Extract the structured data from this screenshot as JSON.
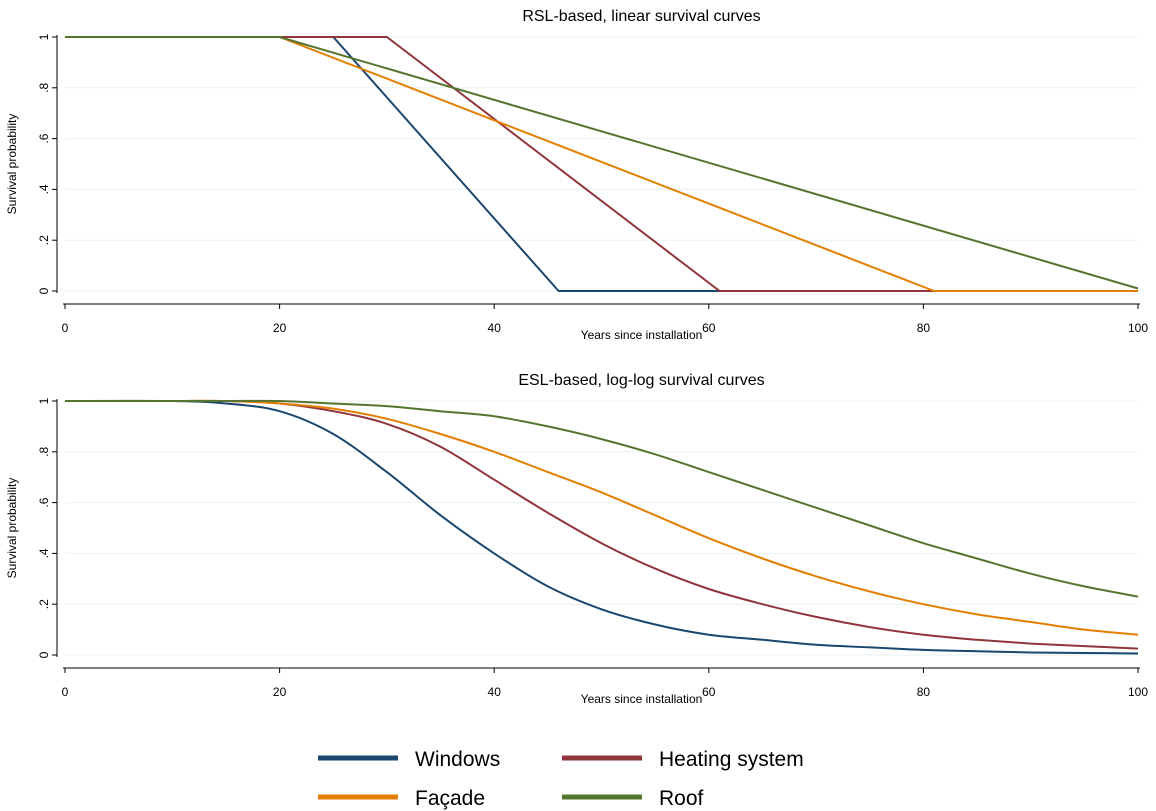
{
  "legend": {
    "items": [
      {
        "name": "Windows",
        "color": "#1a476f"
      },
      {
        "name": "Heating system",
        "color": "#90353b"
      },
      {
        "name": "Façade",
        "color": "#e37e00"
      },
      {
        "name": "Roof",
        "color": "#55752f"
      }
    ]
  },
  "chart_data": [
    {
      "type": "line",
      "title": "RSL-based, linear survival curves",
      "xlabel": "Years since installation",
      "ylabel": "Survival probability",
      "xlim": [
        0,
        100
      ],
      "ylim": [
        0,
        1
      ],
      "xticks": [
        0,
        20,
        40,
        60,
        80,
        100
      ],
      "xtick_labels": [
        "0",
        "20",
        "40",
        "60",
        "80",
        "100"
      ],
      "yticks": [
        0,
        0.2,
        0.4,
        0.6,
        0.8,
        1
      ],
      "ytick_labels": [
        "0",
        ".2",
        ".4",
        ".6",
        ".8",
        "1"
      ],
      "grid": true,
      "series": [
        {
          "name": "Windows",
          "color": "#1a476f",
          "x": [
            0,
            25,
            46,
            100
          ],
          "y": [
            1,
            1,
            0,
            0
          ]
        },
        {
          "name": "Heating system",
          "color": "#90353b",
          "x": [
            0,
            30,
            61,
            100
          ],
          "y": [
            1,
            1,
            0,
            0
          ]
        },
        {
          "name": "Façade",
          "color": "#e37e00",
          "x": [
            0,
            20,
            81,
            100
          ],
          "y": [
            1,
            1,
            0,
            0
          ]
        },
        {
          "name": "Roof",
          "color": "#55752f",
          "x": [
            0,
            20,
            100
          ],
          "y": [
            1,
            1,
            0.01
          ]
        }
      ]
    },
    {
      "type": "line",
      "title": "ESL-based, log-log survival curves",
      "xlabel": "Years since installation",
      "ylabel": "Survival probability",
      "xlim": [
        0,
        100
      ],
      "ylim": [
        0,
        1
      ],
      "xticks": [
        0,
        20,
        40,
        60,
        80,
        100
      ],
      "xtick_labels": [
        "0",
        "20",
        "40",
        "60",
        "80",
        "100"
      ],
      "yticks": [
        0,
        0.2,
        0.4,
        0.6,
        0.8,
        1
      ],
      "ytick_labels": [
        "0",
        ".2",
        ".4",
        ".6",
        ".8",
        "1"
      ],
      "grid": true,
      "series": [
        {
          "name": "Windows",
          "color": "#1a476f",
          "x": [
            0,
            10,
            15,
            20,
            25,
            30,
            35,
            40,
            45,
            50,
            55,
            60,
            65,
            70,
            75,
            80,
            85,
            90,
            95,
            100
          ],
          "y": [
            1,
            1,
            0.99,
            0.96,
            0.87,
            0.72,
            0.55,
            0.4,
            0.27,
            0.18,
            0.12,
            0.08,
            0.06,
            0.04,
            0.03,
            0.02,
            0.015,
            0.01,
            0.008,
            0.006
          ]
        },
        {
          "name": "Heating system",
          "color": "#90353b",
          "x": [
            0,
            10,
            15,
            20,
            25,
            30,
            35,
            40,
            45,
            50,
            55,
            60,
            65,
            70,
            75,
            80,
            85,
            90,
            95,
            100
          ],
          "y": [
            1,
            1,
            1,
            0.99,
            0.96,
            0.91,
            0.82,
            0.69,
            0.56,
            0.44,
            0.34,
            0.26,
            0.2,
            0.15,
            0.11,
            0.08,
            0.06,
            0.045,
            0.035,
            0.025
          ]
        },
        {
          "name": "Façade",
          "color": "#e37e00",
          "x": [
            0,
            10,
            15,
            20,
            25,
            30,
            35,
            40,
            45,
            50,
            55,
            60,
            65,
            70,
            75,
            80,
            85,
            90,
            95,
            100
          ],
          "y": [
            1,
            1,
            1,
            0.99,
            0.97,
            0.93,
            0.87,
            0.8,
            0.72,
            0.64,
            0.55,
            0.46,
            0.38,
            0.31,
            0.25,
            0.2,
            0.16,
            0.13,
            0.1,
            0.08
          ]
        },
        {
          "name": "Roof",
          "color": "#55752f",
          "x": [
            0,
            10,
            15,
            20,
            25,
            30,
            35,
            40,
            45,
            50,
            55,
            60,
            65,
            70,
            75,
            80,
            85,
            90,
            95,
            100
          ],
          "y": [
            1,
            1,
            1,
            1,
            0.99,
            0.98,
            0.96,
            0.94,
            0.9,
            0.85,
            0.79,
            0.72,
            0.65,
            0.58,
            0.51,
            0.44,
            0.38,
            0.32,
            0.27,
            0.23
          ]
        }
      ]
    }
  ]
}
